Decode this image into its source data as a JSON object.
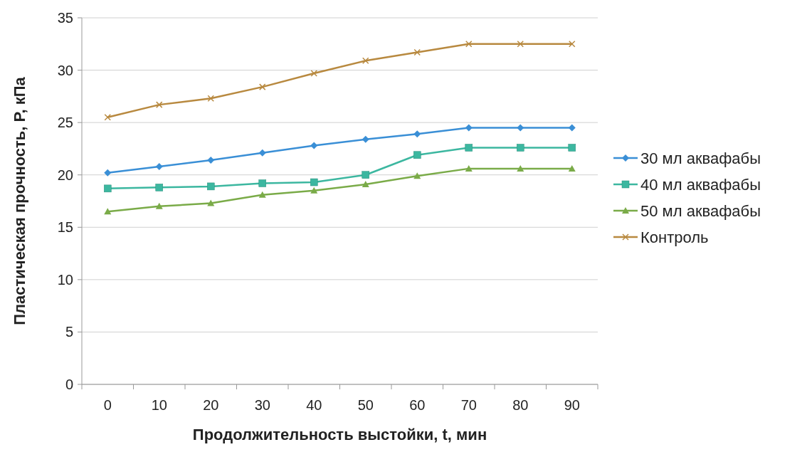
{
  "chart_data": {
    "type": "line",
    "xlabel": "Продолжительность выстойки, t, мин",
    "ylabel": "Пластическая прочность, P, кПа",
    "categories": [
      "0",
      "10",
      "20",
      "30",
      "40",
      "50",
      "60",
      "70",
      "80",
      "90"
    ],
    "ylim": [
      0,
      35
    ],
    "yticks": [
      0,
      5,
      10,
      15,
      20,
      25,
      30,
      35
    ],
    "grid": "y",
    "legend": "right",
    "series": [
      {
        "name": "30 мл аквафабы",
        "color": "#3a8fd6",
        "marker": "diamond",
        "values": [
          20.2,
          20.8,
          21.4,
          22.1,
          22.8,
          23.4,
          23.9,
          24.5,
          24.5,
          24.5
        ]
      },
      {
        "name": "40 мл аквафабы",
        "color": "#3cb7a0",
        "marker": "square",
        "values": [
          18.7,
          18.8,
          18.9,
          19.2,
          19.3,
          20.0,
          21.9,
          22.6,
          22.6,
          22.6
        ]
      },
      {
        "name": "50 мл аквафабы",
        "color": "#7aab48",
        "marker": "triangle",
        "values": [
          16.5,
          17.0,
          17.3,
          18.1,
          18.5,
          19.1,
          19.9,
          20.6,
          20.6,
          20.6
        ]
      },
      {
        "name": "Контроль",
        "color": "#b8893f",
        "marker": "cross",
        "values": [
          25.5,
          26.7,
          27.3,
          28.4,
          29.7,
          30.9,
          31.7,
          32.5,
          32.5,
          32.5
        ]
      }
    ]
  }
}
